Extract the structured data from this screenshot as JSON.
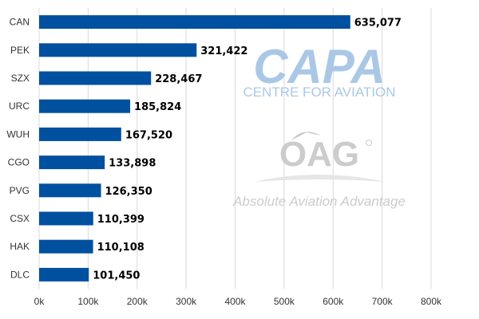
{
  "chart_data": {
    "type": "bar",
    "orientation": "horizontal",
    "categories": [
      "CAN",
      "PEK",
      "SZX",
      "URC",
      "WUH",
      "CGO",
      "PVG",
      "CSX",
      "HAK",
      "DLC"
    ],
    "values": [
      635077,
      321422,
      228467,
      185824,
      167520,
      133898,
      126350,
      110399,
      110108,
      101450
    ],
    "value_labels": [
      "635,077",
      "321,422",
      "228,467",
      "185,824",
      "167,520",
      "133,898",
      "126,350",
      "110,399",
      "110,108",
      "101,450"
    ],
    "title": "",
    "xlabel": "",
    "ylabel": "",
    "xlim": [
      0,
      800000
    ],
    "ticks": [
      0,
      100000,
      200000,
      300000,
      400000,
      500000,
      600000,
      700000,
      800000
    ],
    "tick_labels": [
      "0k",
      "100k",
      "200k",
      "300k",
      "400k",
      "500k",
      "600k",
      "700k",
      "800k"
    ],
    "grid": true,
    "bar_color": "#0050a0"
  },
  "watermarks": {
    "capa_logo": "CAPA",
    "capa_tagline": "CENTRE FOR AVIATION",
    "oag_logo": "OAG",
    "oag_tagline": "Absolute Aviation Advantage",
    "capa_color": "#aac8e6",
    "oag_color": "#cccccc"
  }
}
